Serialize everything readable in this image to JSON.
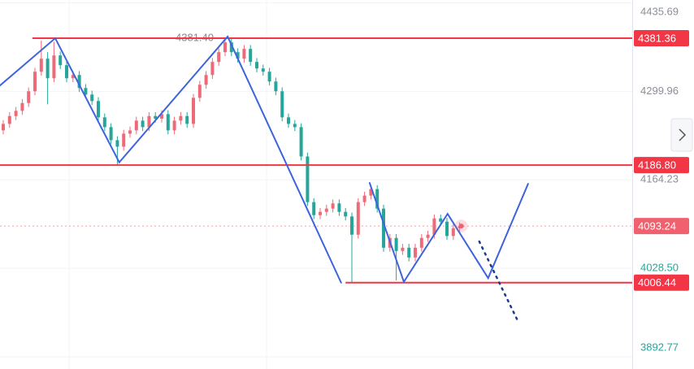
{
  "chart_data": {
    "type": "candlestick",
    "up_color": "#ef6a78",
    "down_color": "#26a69a",
    "open": [
      4240,
      4250,
      4262,
      4270,
      4282,
      4300,
      4330,
      4350,
      4320,
      4355,
      4340,
      4320,
      4325,
      4305,
      4295,
      4285,
      4260,
      4245,
      4225,
      4215,
      4235,
      4240,
      4255,
      4245,
      4262,
      4258,
      4265,
      4240,
      4255,
      4262,
      4250,
      4290,
      4310,
      4325,
      4345,
      4360,
      4375,
      4360,
      4350,
      4365,
      4345,
      4335,
      4330,
      4315,
      4300,
      4260,
      4250,
      4245,
      4200,
      4130,
      4110,
      4115,
      4120,
      4128,
      4115,
      4108,
      4080,
      4130,
      4140,
      4150,
      4120,
      4060,
      4075,
      4055,
      4060,
      4045,
      4060,
      4075,
      4080,
      4105,
      4100,
      4078,
      4090
    ],
    "high": [
      4256,
      4268,
      4276,
      4288,
      4306,
      4336,
      4378,
      4360,
      4376,
      4361,
      4346,
      4331,
      4331,
      4311,
      4301,
      4291,
      4266,
      4251,
      4231,
      4241,
      4246,
      4261,
      4261,
      4268,
      4268,
      4271,
      4271,
      4261,
      4268,
      4268,
      4296,
      4316,
      4331,
      4351,
      4366,
      4381.4,
      4381,
      4366,
      4371,
      4371,
      4351,
      4341,
      4336,
      4321,
      4306,
      4266,
      4256,
      4251,
      4206,
      4136,
      4121,
      4126,
      4134,
      4134,
      4121,
      4114,
      4136,
      4146,
      4156,
      4156,
      4126,
      4081,
      4081,
      4066,
      4066,
      4066,
      4081,
      4086,
      4111,
      4111,
      4106,
      4096,
      4099
    ],
    "low": [
      4234,
      4244,
      4256,
      4264,
      4276,
      4294,
      4324,
      4280,
      4314,
      4334,
      4314,
      4314,
      4299,
      4289,
      4279,
      4254,
      4239,
      4219,
      4187,
      4209,
      4229,
      4234,
      4239,
      4239,
      4252,
      4252,
      4234,
      4234,
      4249,
      4244,
      4244,
      4284,
      4304,
      4319,
      4339,
      4354,
      4354,
      4344,
      4344,
      4339,
      4329,
      4324,
      4309,
      4294,
      4254,
      4244,
      4239,
      4194,
      4124,
      4104,
      4104,
      4109,
      4114,
      4109,
      4102,
      4006.44,
      4074,
      4124,
      4134,
      4114,
      4054,
      4054,
      4010,
      4049,
      4039,
      4039,
      4054,
      4069,
      4074,
      4094,
      4072,
      4072,
      4084
    ],
    "close": [
      4250,
      4262,
      4270,
      4282,
      4300,
      4330,
      4350,
      4320,
      4355,
      4340,
      4320,
      4325,
      4305,
      4295,
      4285,
      4260,
      4245,
      4225,
      4215,
      4235,
      4240,
      4255,
      4245,
      4262,
      4258,
      4265,
      4240,
      4255,
      4262,
      4250,
      4290,
      4310,
      4325,
      4345,
      4360,
      4375,
      4360,
      4350,
      4365,
      4345,
      4335,
      4330,
      4315,
      4300,
      4260,
      4250,
      4245,
      4200,
      4130,
      4110,
      4115,
      4120,
      4128,
      4115,
      4108,
      4080,
      4130,
      4140,
      4150,
      4120,
      4060,
      4075,
      4055,
      4060,
      4045,
      4060,
      4075,
      4080,
      4105,
      4100,
      4078,
      4090,
      4093.24
    ],
    "ylim": [
      3874,
      4440
    ],
    "yticks": [
      4435.69,
      {
        "value": 4299.96,
        "label": "4299.96"
      },
      4164.23,
      {
        "value": 4028.5,
        "label": "4028.50"
      },
      3892.77
    ],
    "grid": true,
    "levels": [
      {
        "value": 4381.36,
        "label": "4381.36",
        "color": "#f23645",
        "from": 4.6
      },
      {
        "value": 4186.8,
        "label": "4186.80",
        "color": "#f23645",
        "from": -1
      },
      {
        "value": 4006.44,
        "label": "4006.44",
        "color": "#f23645",
        "from": 54
      }
    ],
    "current_price": {
      "value": 4093.24,
      "label": "4093.24",
      "color": "#f0606e"
    },
    "max_marker": {
      "value": 4381.4,
      "label": "4381.40",
      "x": 35
    },
    "drawings": [
      {
        "color": "#3d63dd",
        "style": "solid",
        "x": [
          -0.5,
          8.2,
          18.3,
          35.4,
          53.3
        ],
        "values": [
          4308.9,
          4381.36,
          4191,
          4383.9,
          4006.44
        ]
      },
      {
        "color": "#3d63dd",
        "style": "solid",
        "x": [
          57.8,
          63.2,
          70.1,
          76.5,
          82.8
        ],
        "values": [
          4159.4,
          4007.7,
          4112,
          4013.4,
          4158
        ]
      },
      {
        "color": "#1b3b8f",
        "style": "dotted",
        "x": [
          75.1,
          81.2
        ],
        "values": [
          4069.6,
          3947.3
        ]
      }
    ]
  }
}
